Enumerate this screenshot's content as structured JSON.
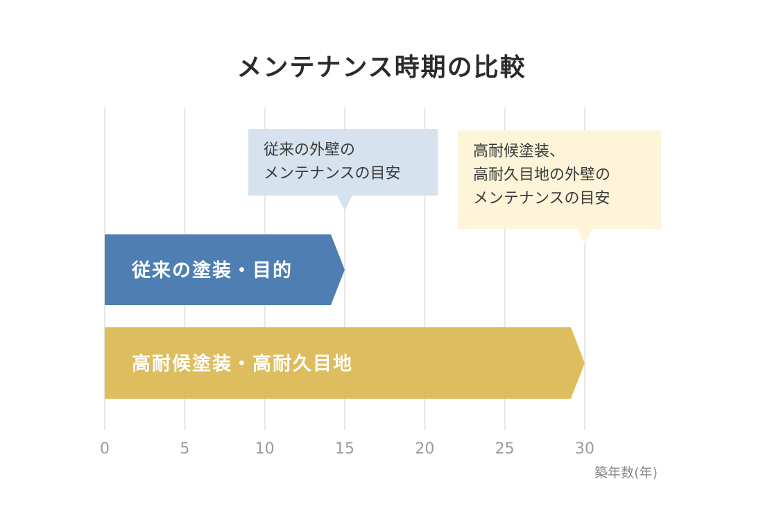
{
  "chart_data": {
    "type": "bar",
    "orientation": "horizontal",
    "title": "メンテナンス時期の比較",
    "xlabel": "築年数(年)",
    "xlim": [
      0,
      35
    ],
    "xticks": [
      0,
      5,
      10,
      15,
      20,
      25,
      30
    ],
    "grid": true,
    "series": [
      {
        "name": "従来の塗装・目的",
        "value": 15,
        "color": "#4f7fb2"
      },
      {
        "name": "高耐候塗装・高耐久目地",
        "value": 30,
        "color": "#ddbd5e"
      }
    ],
    "annotations": [
      {
        "lines": [
          "従来の外壁の",
          "メンテナンスの目安"
        ],
        "x": 15,
        "color": "#d6e2ee"
      },
      {
        "lines": [
          "高耐候塗装、",
          "高耐久目地の外壁の",
          "メンテナンスの目安"
        ],
        "x": 30,
        "color": "#fdf4d9"
      }
    ]
  }
}
